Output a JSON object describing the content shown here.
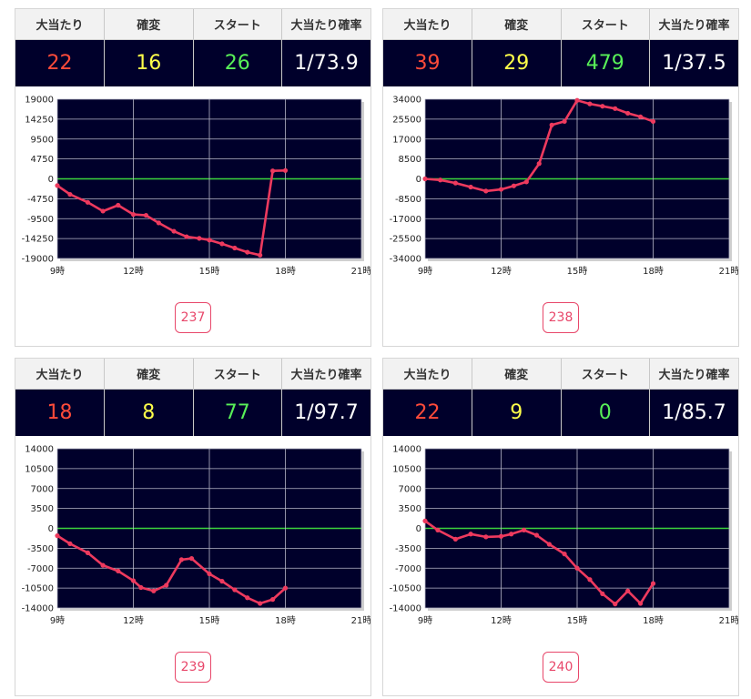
{
  "headers": {
    "hits": "大当たり",
    "kakuhen": "確変",
    "start": "スタート",
    "probability": "大当たり確率"
  },
  "colors": {
    "plot_bg": "#00002b",
    "line": "#ee3a5e",
    "zero_line": "#3cd33c",
    "grid": "#b8b8c8",
    "hits": "#ff4b3a",
    "kakuhen": "#ffff4a",
    "start": "#58f058"
  },
  "cards": [
    {
      "hits": "22",
      "kakuhen": "16",
      "start": "26",
      "probability": "1/73.9",
      "machine": "237"
    },
    {
      "hits": "39",
      "kakuhen": "29",
      "start": "479",
      "probability": "1/37.5",
      "machine": "238"
    },
    {
      "hits": "18",
      "kakuhen": "8",
      "start": "77",
      "probability": "1/97.7",
      "machine": "239"
    },
    {
      "hits": "22",
      "kakuhen": "9",
      "start": "0",
      "probability": "1/85.7",
      "machine": "240"
    }
  ],
  "chart_data": [
    {
      "type": "line",
      "x_ticks": [
        "9時",
        "12時",
        "15時",
        "18時",
        "21時"
      ],
      "xlim": [
        9,
        21
      ],
      "y_ticks": [
        "19000",
        "14250",
        "9500",
        "4750",
        "0",
        "-4750",
        "-9500",
        "-14250",
        "-19000"
      ],
      "ylim": [
        -19000,
        19000
      ],
      "series": [
        {
          "x": [
            9,
            9.5,
            10.2,
            10.8,
            11.4,
            12,
            12.5,
            13,
            13.6,
            14.1,
            14.6,
            15,
            15.5,
            16,
            16.5,
            17,
            17.5,
            18
          ],
          "y": [
            -1600,
            -3700,
            -5600,
            -7700,
            -6300,
            -8500,
            -8700,
            -10500,
            -12500,
            -13800,
            -14200,
            -14600,
            -15500,
            -16500,
            -17500,
            -18200,
            1900,
            2000
          ]
        }
      ]
    },
    {
      "type": "line",
      "x_ticks": [
        "9時",
        "12時",
        "15時",
        "18時",
        "21時"
      ],
      "xlim": [
        9,
        21
      ],
      "y_ticks": [
        "34000",
        "25500",
        "17000",
        "8500",
        "0",
        "-8500",
        "-17000",
        "-25500",
        "-34000"
      ],
      "ylim": [
        -34000,
        34000
      ],
      "series": [
        {
          "x": [
            9,
            9.6,
            10.2,
            10.8,
            11.4,
            12,
            12.5,
            13,
            13.5,
            14,
            14.5,
            15,
            15.5,
            16,
            16.5,
            17,
            17.5,
            18
          ],
          "y": [
            0,
            -500,
            -1800,
            -3500,
            -5200,
            -4500,
            -3000,
            -1300,
            6500,
            23000,
            24500,
            33500,
            32000,
            31000,
            30000,
            28000,
            26500,
            24500
          ]
        }
      ]
    },
    {
      "type": "line",
      "x_ticks": [
        "9時",
        "12時",
        "15時",
        "18時",
        "21時"
      ],
      "xlim": [
        9,
        21
      ],
      "y_ticks": [
        "14000",
        "10500",
        "7000",
        "3500",
        "0",
        "-3500",
        "-7000",
        "-10500",
        "-14000"
      ],
      "ylim": [
        -14000,
        14000
      ],
      "series": [
        {
          "x": [
            9,
            9.5,
            10.2,
            10.8,
            11.4,
            12,
            12.3,
            12.8,
            13.3,
            13.9,
            14.3,
            15,
            15.5,
            16,
            16.5,
            17,
            17.5,
            18
          ],
          "y": [
            -1300,
            -2700,
            -4300,
            -6500,
            -7500,
            -9200,
            -10400,
            -11000,
            -10000,
            -5500,
            -5300,
            -8000,
            -9300,
            -10800,
            -12200,
            -13200,
            -12500,
            -10500
          ]
        }
      ]
    },
    {
      "type": "line",
      "x_ticks": [
        "9時",
        "12時",
        "15時",
        "18時",
        "21時"
      ],
      "xlim": [
        9,
        21
      ],
      "y_ticks": [
        "14000",
        "10500",
        "7000",
        "3500",
        "0",
        "-3500",
        "-7000",
        "-10500",
        "-14000"
      ],
      "ylim": [
        -14000,
        14000
      ],
      "series": [
        {
          "x": [
            9,
            9.5,
            10.2,
            10.8,
            11.4,
            12,
            12.4,
            12.9,
            13.4,
            13.9,
            14.5,
            15,
            15.5,
            16,
            16.5,
            17,
            17.5,
            18
          ],
          "y": [
            1300,
            -300,
            -1900,
            -1000,
            -1500,
            -1400,
            -1000,
            -300,
            -1200,
            -2800,
            -4500,
            -7000,
            -9000,
            -11500,
            -13300,
            -11000,
            -13200,
            -9700
          ]
        }
      ]
    }
  ]
}
